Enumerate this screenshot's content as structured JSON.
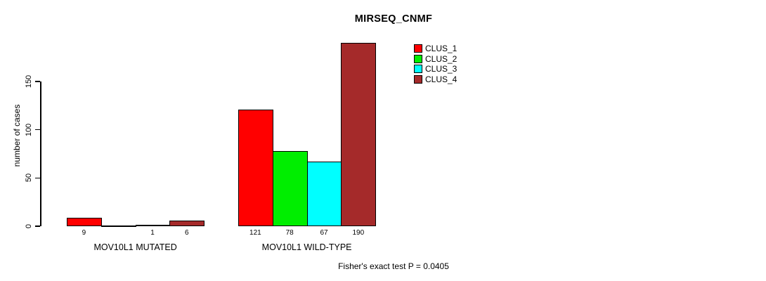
{
  "chart_data": {
    "type": "bar",
    "title": "MIRSEQ_CNMF",
    "ylabel": "number of cases",
    "xlabel": "",
    "y_ticks": [
      0,
      50,
      100,
      150
    ],
    "axis_range": [
      0,
      150
    ],
    "grid": false,
    "legend_position": "top-right",
    "categories": [
      "MOV10L1 MUTATED",
      "MOV10L1 WILD-TYPE"
    ],
    "series": [
      {
        "name": "CLUS_1",
        "color": "#FF0000",
        "values": [
          9,
          121
        ]
      },
      {
        "name": "CLUS_2",
        "color": "#00EE00",
        "values": [
          0,
          78
        ]
      },
      {
        "name": "CLUS_3",
        "color": "#00FFFF",
        "values": [
          1,
          67
        ]
      },
      {
        "name": "CLUS_4",
        "color": "#A52A2A",
        "values": [
          6,
          190
        ]
      }
    ],
    "bar_value_labels": [
      [
        "9",
        "",
        "1",
        "6"
      ],
      [
        "121",
        "78",
        "67",
        "190"
      ]
    ],
    "annotation": "Fisher's exact test P = 0.0405"
  }
}
